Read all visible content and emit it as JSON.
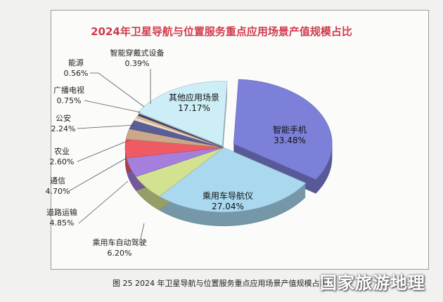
{
  "chart_data": {
    "type": "pie",
    "title": "2024年卫星导航与位置服务重点应用场景产值规模占比",
    "slices": [
      {
        "label": "智能手机",
        "value": 33.48,
        "display": "33.48%",
        "color": "#7d80d8"
      },
      {
        "label": "乘用车导航仪",
        "value": 27.04,
        "display": "27.04%",
        "color": "#a9d8ef"
      },
      {
        "label": "乘用车自动驾驶",
        "value": 6.2,
        "display": "6.20%",
        "color": "#d3e291"
      },
      {
        "label": "道路运输",
        "value": 4.85,
        "display": "4.85%",
        "color": "#a57fdc"
      },
      {
        "label": "通信",
        "value": 4.7,
        "display": "4.70%",
        "color": "#ef5b64"
      },
      {
        "label": "农业",
        "value": 2.6,
        "display": "2.60%",
        "color": "#c9a98a"
      },
      {
        "label": "公安",
        "value": 2.24,
        "display": "2.24%",
        "color": "#5a5e96"
      },
      {
        "label": "广播电视",
        "value": 0.75,
        "display": "0.75%",
        "color": "#ebddcf"
      },
      {
        "label": "能源",
        "value": 0.56,
        "display": "0.56%",
        "color": "#e6b98a"
      },
      {
        "label": "智能穿戴式设备",
        "value": 0.39,
        "display": "0.39%",
        "color": "#3c3f6e"
      },
      {
        "label": "其他应用场景",
        "value": 17.17,
        "display": "17.17%",
        "color": "#cdeef6"
      }
    ],
    "legend": "none"
  },
  "caption": "图 25  2024 年卫星导航与位置服务重点应用场景产值规模占比",
  "watermark": "国家旅游地理"
}
